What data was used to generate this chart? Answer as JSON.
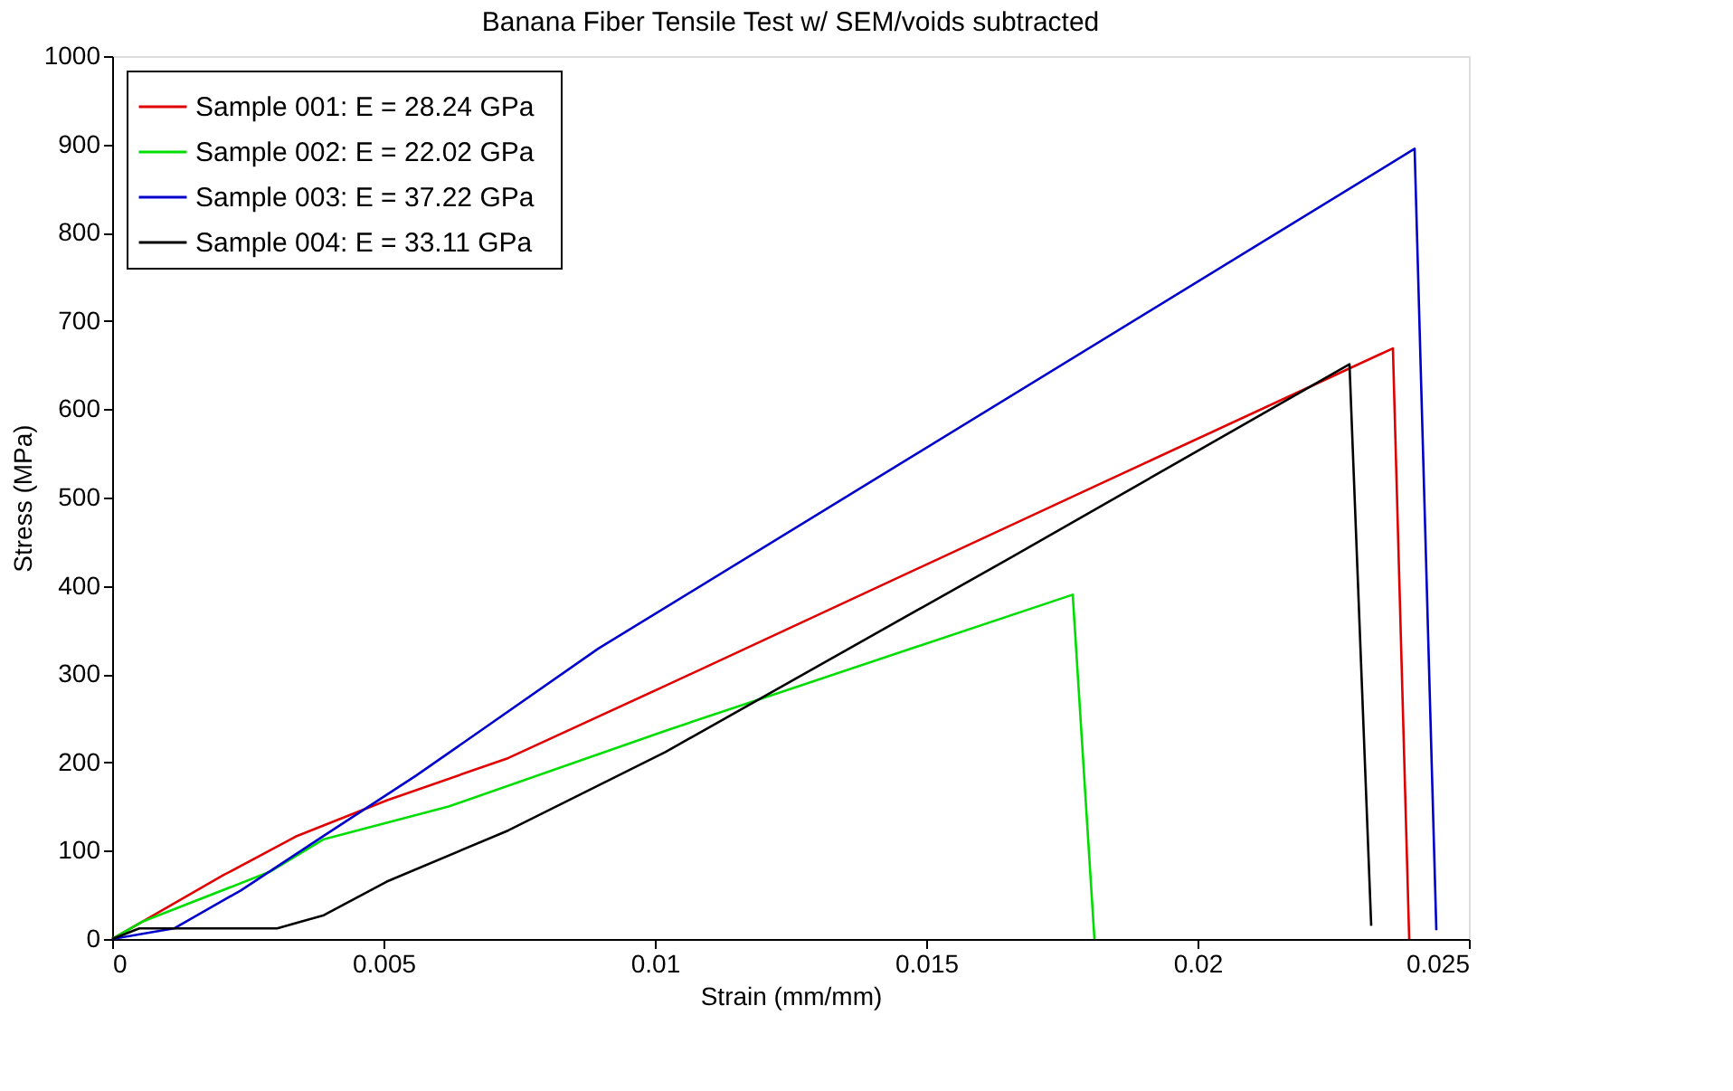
{
  "chart_data": {
    "type": "line",
    "title": "Banana Fiber Tensile Test w/ SEM/voids subtracted",
    "xlabel": "Strain (mm/mm)",
    "ylabel": "Stress (MPa)",
    "xlim": [
      0,
      0.025
    ],
    "xticks": [
      0,
      0.005,
      0.01,
      0.015,
      0.02,
      0.025
    ],
    "ylim": [
      0,
      1000
    ],
    "yticks": [
      0,
      100,
      200,
      300,
      400,
      500,
      600,
      700,
      800,
      900,
      1000
    ],
    "grid": false,
    "legend": "top left",
    "marker": "none",
    "line_style": "solid",
    "series": [
      {
        "name": "Sample 001:   E = 28.24 GPa",
        "color": "#e00000",
        "x": [
          0,
          0.00204,
          0.00338,
          0.00506,
          0.0073,
          0.0102,
          0.0178,
          0.0236,
          0.0239
        ],
        "values": [
          0,
          72,
          116,
          157,
          205,
          287,
          504,
          669,
          0
        ]
      },
      {
        "name": "Sample 002:   E = 22.02 GPa",
        "color": "#00dd00",
        "x": [
          0,
          0.00057,
          0.0029,
          0.0039,
          0.0062,
          0.0102,
          0.0177,
          0.0181
        ],
        "values": [
          0,
          20,
          76,
          113,
          150,
          236,
          390,
          0
        ]
      },
      {
        "name": "Sample 003:   E = 37.22 GPa",
        "color": "#0000cc",
        "x": [
          0,
          0.00114,
          0.00237,
          0.0039,
          0.0056,
          0.00896,
          0.024,
          0.0244
        ],
        "values": [
          0,
          12,
          55,
          117,
          185,
          329,
          895,
          10
        ]
      },
      {
        "name": "Sample 004:   E = 33.11 GPa",
        "color": "#000000",
        "x": [
          0,
          0.0005,
          0.00304,
          0.0039,
          0.00506,
          0.0073,
          0.0102,
          0.0165,
          0.0228,
          0.0232
        ],
        "values": [
          0,
          12,
          12,
          27,
          65,
          123,
          212,
          430,
          651,
          15
        ]
      }
    ]
  }
}
